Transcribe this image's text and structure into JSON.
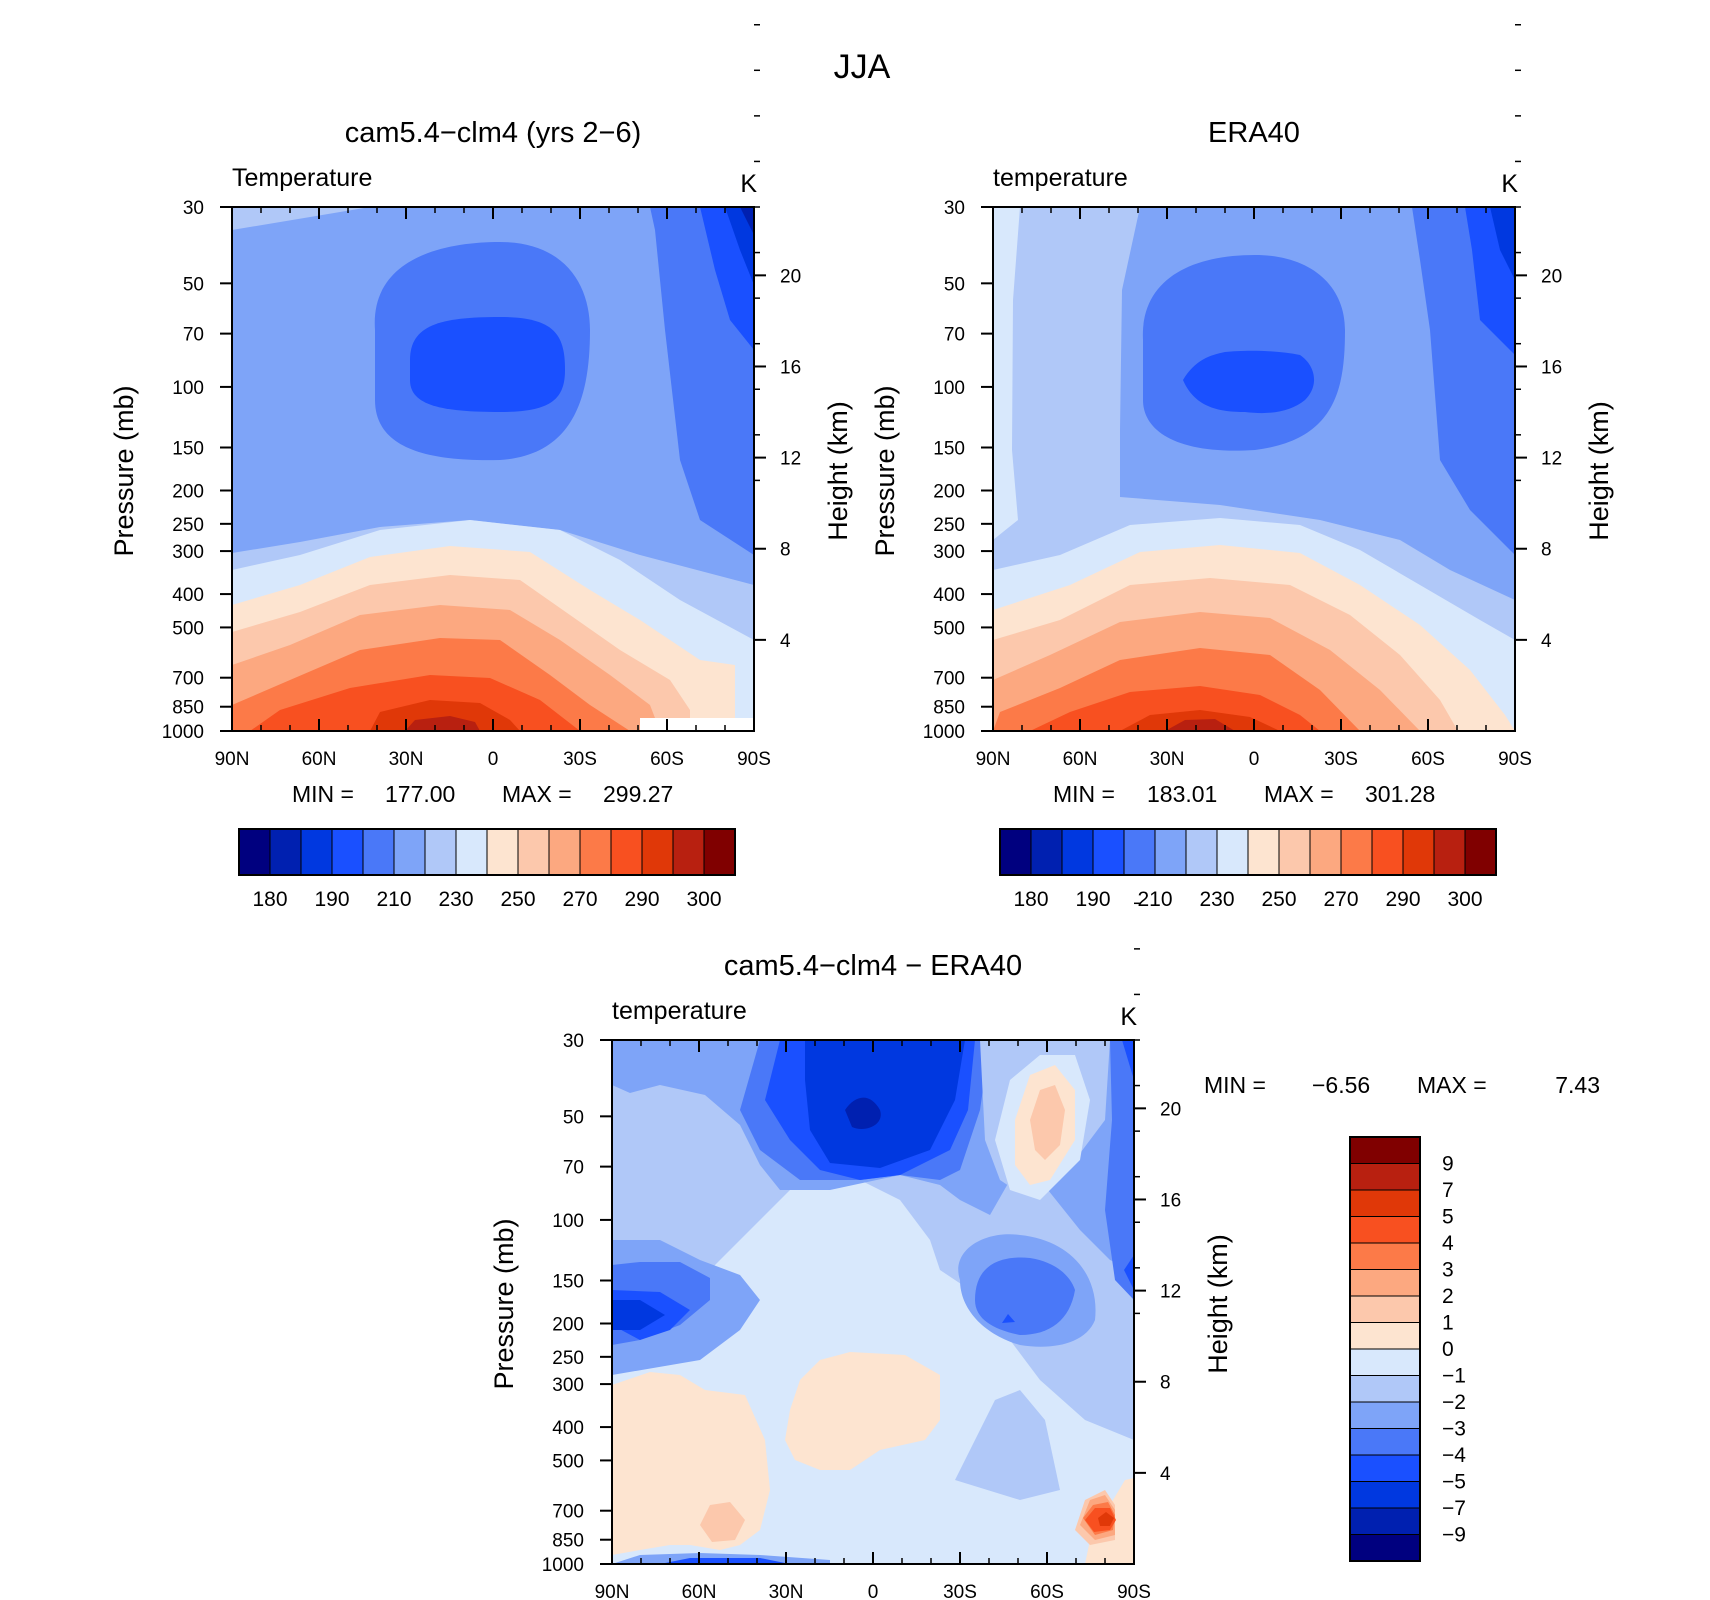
{
  "figure": {
    "title": "JJA"
  },
  "panels": [
    {
      "id": "model",
      "title": "cam5.4−clm4 (yrs 2−6)",
      "variable": "Temperature",
      "units": "K",
      "stats": {
        "min_label": "MIN =",
        "min": "177.00",
        "max_label": "MAX =",
        "max": "299.27"
      }
    },
    {
      "id": "obs",
      "title": "ERA40",
      "variable": "temperature",
      "units": "K",
      "stats": {
        "min_label": "MIN =",
        "min": "183.01",
        "max_label": "MAX =",
        "max": "301.28"
      }
    },
    {
      "id": "diff",
      "title": "cam5.4−clm4 − ERA40",
      "variable": "temperature",
      "units": "K",
      "stats": {
        "min_label": "MIN =",
        "min": "−6.56",
        "max_label": "MAX =",
        "max": "7.43"
      }
    }
  ],
  "chart_data": [
    {
      "type": "heatmap",
      "subtype": "filled-contour",
      "panel": "model",
      "title": "cam5.4−clm4 (yrs 2−6)",
      "xlabel": "",
      "ylabel": "Pressure (mb)",
      "ylabel_right": "Height (km)",
      "x_ticks": [
        "90N",
        "60N",
        "30N",
        "0",
        "30S",
        "60S",
        "90S"
      ],
      "y_ticks": [
        "30",
        "50",
        "70",
        "100",
        "150",
        "200",
        "250",
        "300",
        "400",
        "500",
        "700",
        "850",
        "1000"
      ],
      "y_ticks_right": [
        "20",
        "16",
        "12",
        "8",
        "4"
      ],
      "y_scale": "log-pressure",
      "xlim": [
        90,
        -90
      ],
      "ylim": [
        1000,
        30
      ],
      "min": 177.0,
      "max": 299.27
    },
    {
      "type": "heatmap",
      "subtype": "filled-contour",
      "panel": "obs",
      "title": "ERA40",
      "xlabel": "",
      "ylabel": "Pressure (mb)",
      "ylabel_right": "Height (km)",
      "x_ticks": [
        "90N",
        "60N",
        "30N",
        "0",
        "30S",
        "60S",
        "90S"
      ],
      "y_ticks": [
        "30",
        "50",
        "70",
        "100",
        "150",
        "200",
        "250",
        "300",
        "400",
        "500",
        "700",
        "850",
        "1000"
      ],
      "y_ticks_right": [
        "20",
        "16",
        "12",
        "8",
        "4"
      ],
      "y_scale": "log-pressure",
      "xlim": [
        90,
        -90
      ],
      "ylim": [
        1000,
        30
      ],
      "min": 183.01,
      "max": 301.28
    },
    {
      "type": "heatmap",
      "subtype": "filled-contour",
      "panel": "diff",
      "title": "cam5.4−clm4 − ERA40",
      "xlabel": "",
      "ylabel": "Pressure (mb)",
      "ylabel_right": "Height (km)",
      "x_ticks": [
        "90N",
        "60N",
        "30N",
        "0",
        "30S",
        "60S",
        "90S"
      ],
      "y_ticks": [
        "30",
        "50",
        "70",
        "100",
        "150",
        "200",
        "250",
        "300",
        "400",
        "500",
        "700",
        "850",
        "1000"
      ],
      "y_ticks_right": [
        "20",
        "16",
        "12",
        "8",
        "4"
      ],
      "y_scale": "log-pressure",
      "xlim": [
        90,
        -90
      ],
      "ylim": [
        1000,
        30
      ],
      "min": -6.56,
      "max": 7.43
    }
  ],
  "colorbars": {
    "temperature": {
      "orientation": "horizontal",
      "colors": [
        "#00007f",
        "#0020b0",
        "#0038e0",
        "#1a50ff",
        "#4a78f8",
        "#7ea4f8",
        "#b0c8f8",
        "#d8e8fc",
        "#fde4d0",
        "#fcc8ac",
        "#fca880",
        "#fc7a48",
        "#f85020",
        "#e03808",
        "#b82010",
        "#800000"
      ],
      "labels": [
        "180",
        "190",
        "210",
        "230",
        "250",
        "270",
        "290",
        "300"
      ]
    },
    "difference": {
      "orientation": "vertical",
      "colors": [
        "#800000",
        "#b82010",
        "#e03808",
        "#f85020",
        "#fc7a48",
        "#fca880",
        "#fcc8ac",
        "#fde4d0",
        "#d8e8fc",
        "#b0c8f8",
        "#7ea4f8",
        "#4a78f8",
        "#1a50ff",
        "#0038e0",
        "#0020b0",
        "#00007f"
      ],
      "labels": [
        "9",
        "7",
        "5",
        "4",
        "3",
        "2",
        "1",
        "0",
        "−1",
        "−2",
        "−3",
        "−4",
        "−5",
        "−7",
        "−9"
      ]
    }
  }
}
